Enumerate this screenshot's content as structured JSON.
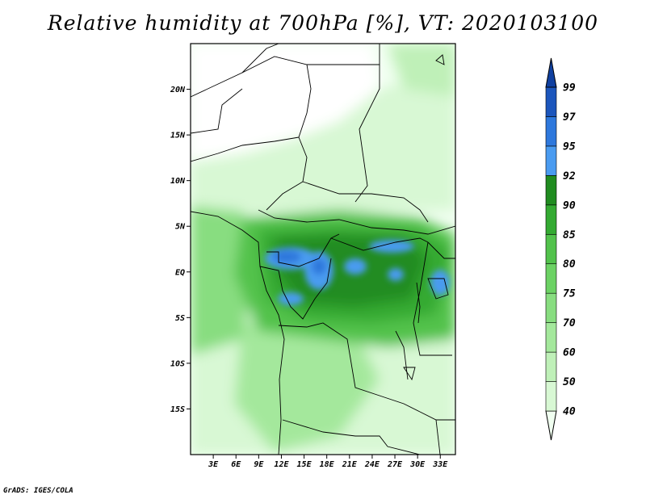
{
  "title": "Relative humidity at 700hPa [%], VT: 2020103100",
  "credit": "GrADS: IGES/COLA",
  "map": {
    "lat_labels": [
      {
        "lat": 20,
        "label": "20N"
      },
      {
        "lat": 15,
        "label": "15N"
      },
      {
        "lat": 10,
        "label": "10N"
      },
      {
        "lat": 5,
        "label": "5N"
      },
      {
        "lat": 0,
        "label": "EQ"
      },
      {
        "lat": -5,
        "label": "5S"
      },
      {
        "lat": -10,
        "label": "10S"
      },
      {
        "lat": -15,
        "label": "15S"
      }
    ],
    "lon_labels": [
      {
        "lon": 3,
        "label": "3E"
      },
      {
        "lon": 6,
        "label": "6E"
      },
      {
        "lon": 9,
        "label": "9E"
      },
      {
        "lon": 12,
        "label": "12E"
      },
      {
        "lon": 15,
        "label": "15E"
      },
      {
        "lon": 18,
        "label": "18E"
      },
      {
        "lon": 21,
        "label": "21E"
      },
      {
        "lon": 24,
        "label": "24E"
      },
      {
        "lon": 27,
        "label": "27E"
      },
      {
        "lon": 30,
        "label": "30E"
      },
      {
        "lon": 33,
        "label": "33E"
      }
    ],
    "extent": {
      "lon_min": 0,
      "lon_max": 35,
      "lat_min": -20,
      "lat_max": 25
    }
  },
  "colorbar": {
    "levels": [
      "40",
      "50",
      "60",
      "70",
      "75",
      "80",
      "85",
      "90",
      "92",
      "95",
      "97",
      "99"
    ],
    "colors": [
      "#f0fff0",
      "#d8f8d4",
      "#bff0b8",
      "#a4e89c",
      "#88dd80",
      "#6cd264",
      "#52c24c",
      "#34aa32",
      "#208c20",
      "#4a9bf0",
      "#2e78dc",
      "#1c56bc",
      "#1040a0"
    ]
  }
}
